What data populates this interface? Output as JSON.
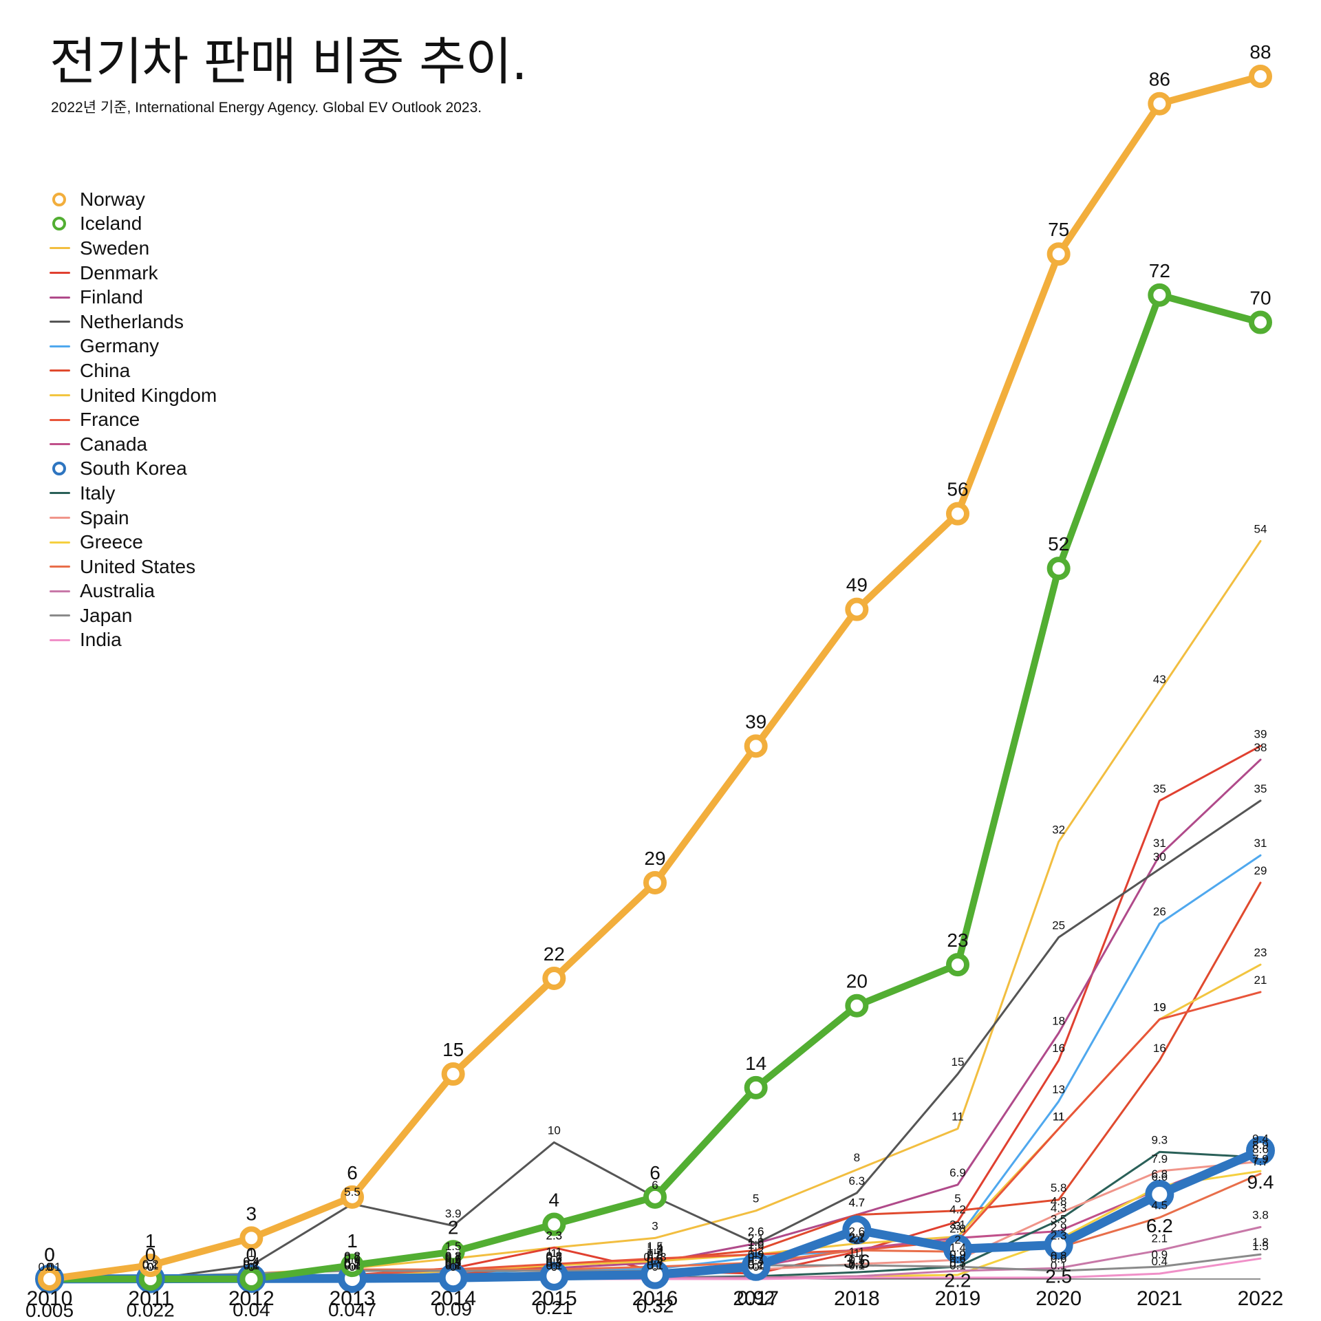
{
  "title": "전기차 판매 비중 추이.",
  "subtitle": "2022년 기준, International Energy Agency. Global EV Outlook 2023.",
  "chart_data": {
    "type": "line",
    "title": "전기차 판매 비중 추이.",
    "subtitle": "2022년 기준, International Energy Agency. Global EV Outlook 2023.",
    "x": [
      "2010",
      "2011",
      "2012",
      "2013",
      "2014",
      "2015",
      "2016",
      "2017",
      "2018",
      "2019",
      "2020",
      "2021",
      "2022"
    ],
    "ylim": [
      0,
      100
    ],
    "grid": false,
    "legend_position": "top-left",
    "series": [
      {
        "name": "Norway",
        "color": "#F2AE3C",
        "highlight": true,
        "values": [
          0,
          1,
          3,
          6,
          15,
          22,
          29,
          39,
          49,
          56,
          75,
          86,
          88
        ]
      },
      {
        "name": "Iceland",
        "color": "#52AE32",
        "highlight": true,
        "values": [
          0,
          0,
          0,
          1,
          2,
          4,
          6,
          14,
          20,
          23,
          52,
          72,
          70
        ]
      },
      {
        "name": "Sweden",
        "color": "#F2BE40",
        "values": [
          0,
          0,
          0.4,
          0.8,
          1.5,
          2.3,
          3,
          5,
          8,
          11,
          32,
          43,
          54
        ]
      },
      {
        "name": "Denmark",
        "color": "#E04030",
        "values": [
          0,
          0,
          0.2,
          0.3,
          0.8,
          2.3,
          0.6,
          0.4,
          2,
          4.2,
          16,
          35,
          39
        ]
      },
      {
        "name": "Finland",
        "color": "#B04A8A",
        "values": [
          0,
          0,
          0.1,
          0.3,
          0.5,
          0.8,
          1.2,
          2.6,
          4.7,
          6.9,
          18,
          31,
          38
        ]
      },
      {
        "name": "Netherlands",
        "color": "#555555",
        "values": [
          0,
          0,
          1,
          5.5,
          3.9,
          10,
          6,
          2.6,
          6.3,
          15,
          25,
          30,
          35
        ]
      },
      {
        "name": "Germany",
        "color": "#4FA8EE",
        "values": [
          0,
          0,
          0.1,
          0.2,
          0.4,
          0.7,
          0.73,
          1.6,
          2.1,
          3,
          13,
          26,
          31
        ]
      },
      {
        "name": "China",
        "color": "#E04A2E",
        "values": [
          0,
          0,
          0.1,
          0.1,
          0.3,
          1,
          1.4,
          2.1,
          4.7,
          5,
          5.8,
          16,
          29
        ]
      },
      {
        "name": "United Kingdom",
        "color": "#F2C540",
        "values": [
          0,
          0,
          0.1,
          0.2,
          0.6,
          1,
          1.3,
          1.8,
          2.6,
          3.1,
          11,
          19,
          23
        ]
      },
      {
        "name": "France",
        "color": "#E8553A",
        "values": [
          0,
          0,
          0.1,
          0.3,
          0.7,
          1.1,
          1.5,
          1.8,
          2.1,
          2.8,
          11,
          19,
          21
        ]
      },
      {
        "name": "Canada",
        "color": "#C0508A",
        "values": [
          0,
          0,
          0.1,
          0.2,
          0.3,
          0.4,
          0.6,
          0.9,
          2.2,
          3,
          3.5,
          6.6,
          9.4
        ]
      },
      {
        "name": "South Korea",
        "color": "#2E75C0",
        "highlight": true,
        "values": [
          0.005,
          0.022,
          0.04,
          0.047,
          0.09,
          0.21,
          0.32,
          0.92,
          3.6,
          2.2,
          2.5,
          6.2,
          9.4
        ]
      },
      {
        "name": "Italy",
        "color": "#2A6058",
        "values": [
          0,
          0,
          0,
          0.1,
          0.1,
          0.1,
          0.1,
          0.2,
          0.5,
          0.9,
          4.3,
          9.3,
          8.9
        ]
      },
      {
        "name": "Spain",
        "color": "#F0958A",
        "values": [
          0,
          0,
          0.1,
          0.1,
          0.2,
          0.3,
          0.4,
          0.7,
          1.1,
          1.4,
          4.8,
          7.9,
          8.6
        ]
      },
      {
        "name": "Greece",
        "color": "#F5D040",
        "values": [
          0,
          0,
          0,
          0,
          0,
          0,
          0.1,
          0.1,
          0.2,
          0.3,
          2.9,
          6.8,
          7.9
        ]
      },
      {
        "name": "United States",
        "color": "#E86E4A",
        "values": [
          0.01,
          0.1,
          0.4,
          0.7,
          0.7,
          0.7,
          0.9,
          1.2,
          2.1,
          2,
          2.3,
          4.5,
          7.7
        ]
      },
      {
        "name": "Australia",
        "color": "#C878A8",
        "values": [
          0,
          0,
          0,
          0,
          0.1,
          0.1,
          0.1,
          0.1,
          0.2,
          0.6,
          0.8,
          2.1,
          3.8
        ]
      },
      {
        "name": "Japan",
        "color": "#8A8A8A",
        "values": [
          0,
          0.2,
          0.4,
          0.6,
          0.6,
          0.6,
          0.6,
          1,
          1,
          0.9,
          0.6,
          0.9,
          1.8
        ]
      },
      {
        "name": "India",
        "color": "#F090C8",
        "values": [
          0,
          0,
          0,
          0,
          0,
          0,
          0,
          0,
          0.1,
          0.1,
          0.1,
          0.4,
          1.5
        ]
      }
    ]
  }
}
